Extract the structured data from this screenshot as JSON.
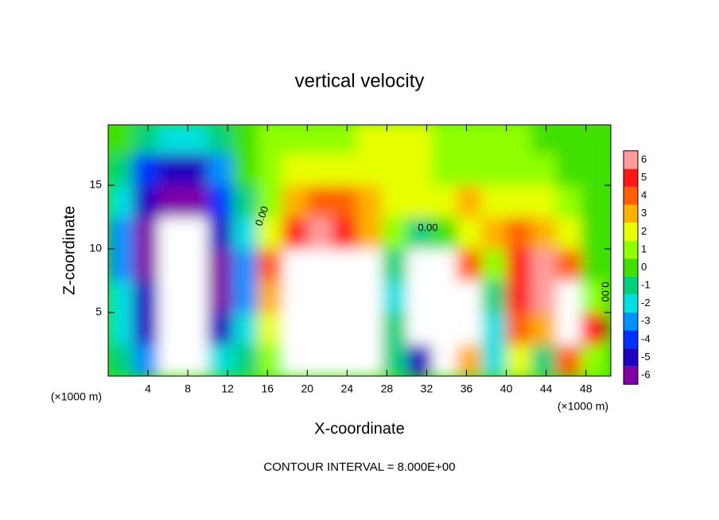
{
  "chart_data": {
    "type": "heatmap",
    "title": "vertical velocity",
    "xlabel": "X-coordinate",
    "ylabel": "Z-coordinate",
    "x_unit": "(×1000 m)",
    "y_unit": "(×1000 m)",
    "footer": "CONTOUR INTERVAL = 8.000E+00",
    "annotations": [
      "0.00",
      "0.00",
      "0.00"
    ],
    "xlim": [
      0,
      50.5
    ],
    "ylim": [
      0,
      19.75
    ],
    "xticks": [
      4,
      8,
      12,
      16,
      20,
      24,
      28,
      32,
      36,
      40,
      44,
      48
    ],
    "yticks": [
      5,
      10,
      15
    ],
    "x_bins": [
      0,
      2.5,
      5,
      7.5,
      10,
      12.5,
      15,
      17.5,
      20,
      22.5,
      25,
      27.5,
      30,
      32.5,
      35,
      37.5,
      40,
      42.5,
      45,
      47.5,
      50
    ],
    "y_bins": [
      0,
      2.5,
      5,
      7.5,
      10,
      12.5,
      15,
      17.5,
      20
    ],
    "values": [
      [
        -1,
        -3,
        -7,
        -8,
        -2,
        -1,
        1,
        7,
        9,
        9,
        8,
        -1,
        -5,
        -7,
        3,
        -2,
        2,
        -1,
        4,
        1
      ],
      [
        -2,
        -5,
        -9,
        -9,
        -5,
        -2,
        2,
        9,
        10,
        10,
        8,
        -1,
        -8,
        -9,
        8,
        -2,
        4,
        3,
        9,
        5
      ],
      [
        -2,
        -5,
        -9,
        -9,
        -6,
        -3,
        3,
        9,
        10,
        10,
        9,
        -2,
        -9,
        -9,
        8,
        -1,
        5,
        6,
        7,
        1
      ],
      [
        -3,
        -6,
        -9,
        -9,
        -6,
        -3,
        4,
        8,
        9,
        9,
        7,
        -1,
        -7,
        -7,
        4,
        1,
        5,
        6,
        4,
        0
      ],
      [
        -3,
        -6,
        -8,
        -8,
        -5,
        -2,
        2,
        5,
        6,
        5,
        3,
        1,
        -1,
        0,
        2,
        3,
        4,
        3,
        2,
        0
      ],
      [
        -2,
        -5,
        -6,
        -6,
        -4,
        -1,
        1,
        3,
        4,
        4,
        3,
        2,
        2,
        2,
        3,
        2,
        2,
        2,
        1,
        0
      ],
      [
        -1,
        -4,
        -5,
        -5,
        -3,
        0,
        1,
        2,
        2,
        2,
        2,
        2,
        2,
        1,
        1,
        1,
        1,
        1,
        0,
        0
      ],
      [
        0,
        -1,
        -2,
        -2,
        -1,
        0,
        1,
        1,
        1,
        1,
        2,
        2,
        2,
        1,
        1,
        1,
        1,
        0,
        0,
        0
      ]
    ],
    "colorbar_ticks": [
      -6,
      -5,
      -4,
      -3,
      -2,
      -1,
      0,
      1,
      2,
      3,
      4,
      5,
      6
    ],
    "colors": [
      "#8000a8",
      "#2000c0",
      "#0030ff",
      "#0090ff",
      "#00e0e0",
      "#00d080",
      "#40e000",
      "#90ff00",
      "#e8ff00",
      "#ffb000",
      "#ff6000",
      "#ff1818",
      "#ff9c9c"
    ],
    "over_color": "#ffffff"
  }
}
